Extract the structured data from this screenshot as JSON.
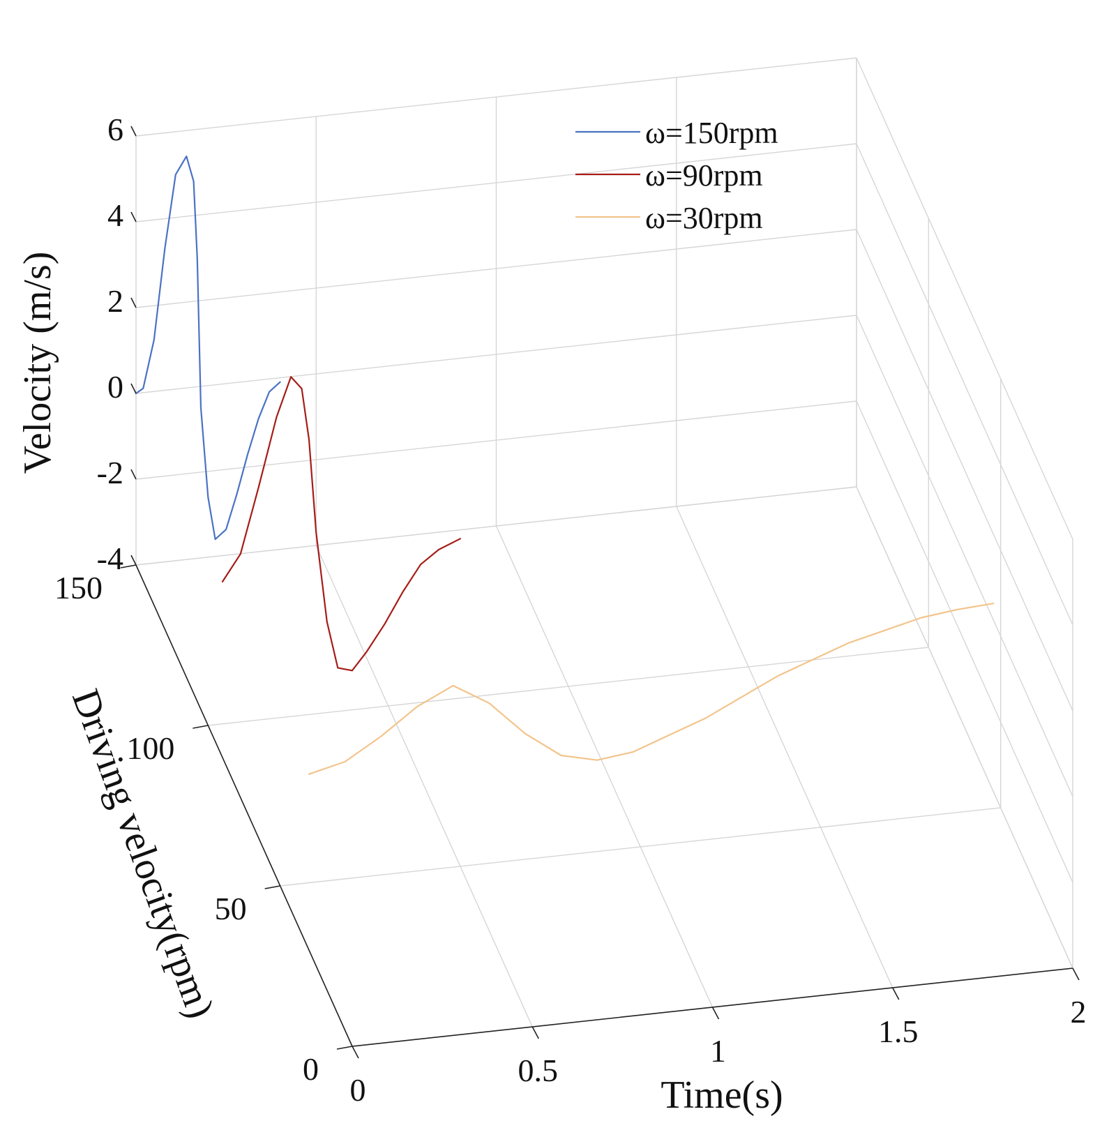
{
  "chart_data": {
    "type": "line",
    "projection": "3d",
    "title": "",
    "xlabel": "Time(s)",
    "ylabel": "Driving velocity(rpm)",
    "zlabel": "Velocity (m/s)",
    "xlim": [
      0,
      2
    ],
    "ylim": [
      0,
      150
    ],
    "zlim": [
      -4,
      6
    ],
    "x_ticks": [
      "0",
      "0.5",
      "1",
      "1.5",
      "2"
    ],
    "y_ticks": [
      "0",
      "50",
      "100",
      "150"
    ],
    "z_ticks": [
      "-4",
      "-2",
      "0",
      "2",
      "4",
      "6"
    ],
    "legend_position": "top-right",
    "grid": true,
    "series": [
      {
        "name": "ω=150rpm",
        "driving_rpm": 150,
        "color": "#4a72c4",
        "t": [
          0.0,
          0.02,
          0.05,
          0.08,
          0.11,
          0.14,
          0.16,
          0.17,
          0.18,
          0.2,
          0.22,
          0.25,
          0.28,
          0.31,
          0.34,
          0.37,
          0.4
        ],
        "v": [
          0.0,
          0.1,
          1.2,
          3.3,
          5.0,
          5.4,
          4.8,
          3.0,
          -0.5,
          -2.6,
          -3.6,
          -3.4,
          -2.6,
          -1.7,
          -0.9,
          -0.3,
          -0.1
        ]
      },
      {
        "name": "ω=90rpm",
        "driving_rpm": 90,
        "color": "#a51d17",
        "t": [
          0.0,
          0.05,
          0.1,
          0.15,
          0.19,
          0.22,
          0.24,
          0.26,
          0.29,
          0.32,
          0.36,
          0.4,
          0.45,
          0.5,
          0.55,
          0.6,
          0.66
        ],
        "v": [
          0.1,
          0.7,
          2.2,
          3.8,
          4.7,
          4.4,
          3.2,
          1.0,
          -1.1,
          -2.2,
          -2.3,
          -1.9,
          -1.3,
          -0.6,
          0.0,
          0.3,
          0.5
        ]
      },
      {
        "name": "ω=30rpm",
        "driving_rpm": 30,
        "color": "#f3c48b",
        "t": [
          0.0,
          0.1,
          0.2,
          0.3,
          0.4,
          0.5,
          0.6,
          0.7,
          0.8,
          0.9,
          1.0,
          1.1,
          1.2,
          1.3,
          1.4,
          1.5,
          1.6,
          1.7,
          1.8,
          1.9
        ],
        "v": [
          0.1,
          0.3,
          0.8,
          1.4,
          1.8,
          1.3,
          0.5,
          -0.1,
          -0.3,
          -0.2,
          0.1,
          0.4,
          0.8,
          1.2,
          1.5,
          1.8,
          2.0,
          2.2,
          2.3,
          2.35
        ]
      }
    ]
  }
}
